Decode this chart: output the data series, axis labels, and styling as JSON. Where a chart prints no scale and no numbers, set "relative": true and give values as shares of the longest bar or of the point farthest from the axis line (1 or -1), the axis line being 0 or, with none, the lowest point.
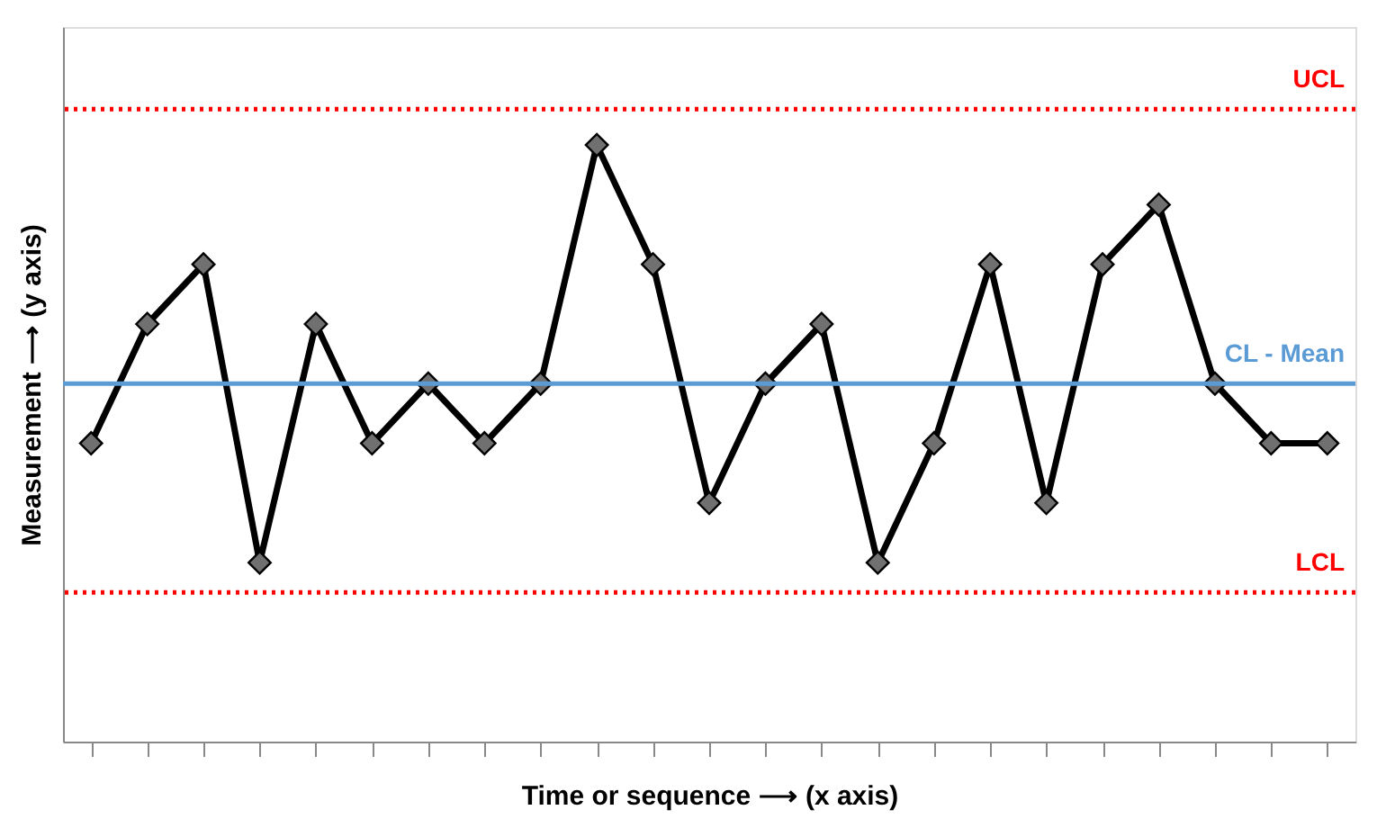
{
  "chart_data": {
    "type": "line",
    "relative": true,
    "xlabel": "Time or sequence ⟶ (x axis)",
    "ylabel": "Measurement ⟶ (y axis)",
    "categories": [
      null,
      null,
      null,
      null,
      null,
      null,
      null,
      null,
      null,
      null,
      null,
      null,
      null,
      null,
      null,
      null,
      null,
      null,
      null,
      null,
      null,
      null,
      null
    ],
    "series": [
      {
        "color": "#000000",
        "values": [
          0.5,
          0.7,
          0.8,
          0.3,
          0.7,
          0.5,
          0.6,
          0.5,
          0.6,
          1,
          0.8,
          0.4,
          0.6,
          0.7,
          0.3,
          0.5,
          0.8,
          0.4,
          0.8,
          0.9,
          0.6,
          0.5,
          0.5
        ]
      }
    ],
    "marker": "diamond",
    "line_style": "solid",
    "grid": false,
    "ref_lines": [
      {
        "axis": "y",
        "value": 1.06,
        "label": "UCL",
        "color": "#ff0000",
        "line_style": "dotted"
      },
      {
        "axis": "y",
        "value": 0.6,
        "label": "CL - Mean",
        "color": "#5b9bd5",
        "line_style": "solid"
      },
      {
        "axis": "y",
        "value": 0.25,
        "label": "LCL",
        "color": "#ff0000",
        "line_style": "dotted"
      }
    ]
  }
}
